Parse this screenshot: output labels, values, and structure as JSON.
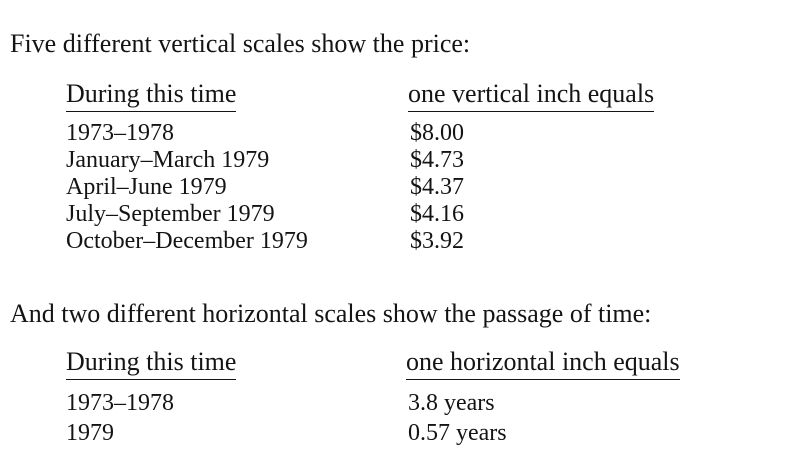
{
  "vertical_section": {
    "intro": "Five different vertical scales show the price:",
    "header_period": "During this time",
    "header_value": "one vertical inch equals",
    "rows": [
      {
        "period": "1973–1978",
        "value": "$8.00"
      },
      {
        "period": "January–March 1979",
        "value": "$4.73"
      },
      {
        "period": "April–June 1979",
        "value": "$4.37"
      },
      {
        "period": "July–September 1979",
        "value": "$4.16"
      },
      {
        "period": "October–December 1979",
        "value": "$3.92"
      }
    ]
  },
  "horizontal_section": {
    "intro": "And two different horizontal scales show the passage of time:",
    "header_period": "During this time",
    "header_value": "one horizontal inch equals",
    "rows": [
      {
        "period": "1973–1978",
        "value": "3.8 years"
      },
      {
        "period": "1979",
        "value": "0.57 years"
      }
    ]
  }
}
